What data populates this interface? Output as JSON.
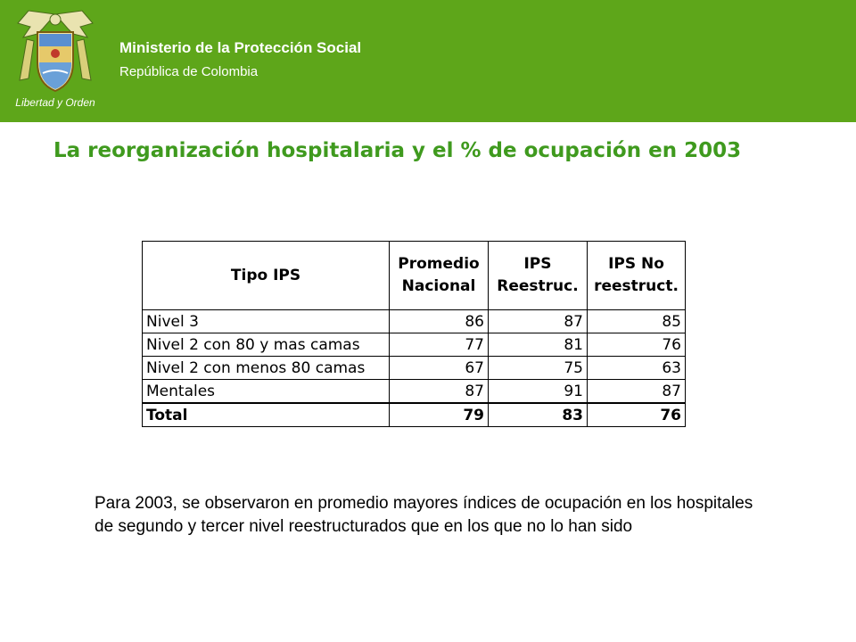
{
  "header": {
    "ministry": "Ministerio de la Protección Social",
    "republic": "República de Colombia",
    "logo_motto": "Libertad y Orden",
    "bg_color": "#5ea61a"
  },
  "title": "La reorganización hospitalaria y el % de ocupación en 2003",
  "table": {
    "headers": [
      "Tipo IPS",
      "Promedio Nacional",
      "IPS Reestruc.",
      "IPS No reestruct."
    ],
    "rows": [
      {
        "tipo": "Nivel 3",
        "promedio": "86",
        "reestruc": "87",
        "no_reestruct": "85"
      },
      {
        "tipo": "Nivel 2 con 80 y mas camas",
        "promedio": "77",
        "reestruc": "81",
        "no_reestruct": "76"
      },
      {
        "tipo": "Nivel 2 con menos 80 camas",
        "promedio": "67",
        "reestruc": "75",
        "no_reestruct": "63"
      },
      {
        "tipo": "Mentales",
        "promedio": "87",
        "reestruc": "91",
        "no_reestruct": "87"
      }
    ],
    "total": {
      "tipo": "Total",
      "promedio": "79",
      "reestruc": "83",
      "no_reestruct": "76"
    }
  },
  "paragraph": "Para 2003, se observaron en promedio mayores índices de ocupación en los hospitales de segundo y tercer nivel reestructurados que en los que no lo han sido"
}
